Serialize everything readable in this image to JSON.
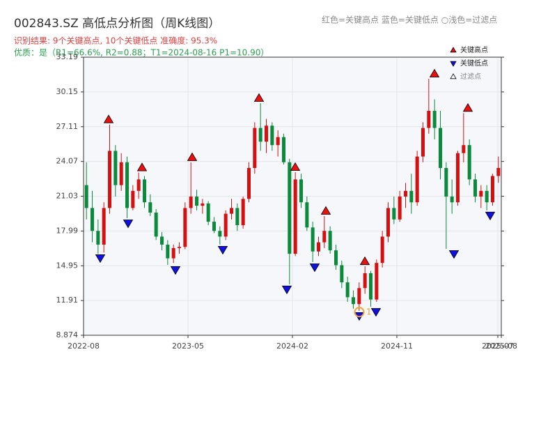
{
  "chart_data": {
    "type": "candlestick",
    "title": "002843.SZ 高低点分析图（周K线图）",
    "subtitles": [
      {
        "text": "识别结果: 9个关键高点, 10个关键低点  准确度: 95.3%",
        "color": "#e04040"
      },
      {
        "text": "优质：是（R1=66.6%, R2=0.88；T1=2024-08-16 P1=10.90）",
        "color": "#2aa050"
      }
    ],
    "header_note": "红色=关键高点    蓝色=关键低点    ○浅色=过滤点",
    "up_color": "#d41010",
    "down_color": "#0a8a3a",
    "grid": true,
    "xlim": [
      0,
      36
    ],
    "xticks": [
      {
        "value": 0,
        "label": "2022-08"
      },
      {
        "value": 9,
        "label": "2023-05"
      },
      {
        "value": 18,
        "label": "2024-02"
      },
      {
        "value": 27,
        "label": "2024-11"
      },
      {
        "value": 35.7,
        "label": "2025-07"
      },
      {
        "value": 36,
        "label": "2025-08"
      }
    ],
    "ylim": [
      8.874,
      33.19
    ],
    "yticks": [
      8.874,
      11.91,
      14.95,
      17.99,
      21.03,
      24.07,
      27.11,
      30.15,
      33.19
    ],
    "candles": [
      [
        22,
        24,
        19,
        20
      ],
      [
        20,
        21.5,
        17,
        18
      ],
      [
        18,
        19,
        16,
        16.8
      ],
      [
        16.8,
        20.5,
        16.1,
        20
      ],
      [
        20,
        27.3,
        19.5,
        25
      ],
      [
        25,
        25.5,
        21,
        22
      ],
      [
        22,
        24.8,
        21.5,
        24
      ],
      [
        24,
        24.5,
        19.11,
        20
      ],
      [
        20,
        22,
        19.8,
        21.5
      ],
      [
        21.5,
        23.1,
        20.8,
        22.5
      ],
      [
        22.5,
        22.8,
        20,
        20.5
      ],
      [
        20.5,
        21.2,
        19.3,
        19.6
      ],
      [
        19.6,
        19.9,
        17.2,
        17.5
      ],
      [
        17.5,
        17.9,
        16.3,
        16.8
      ],
      [
        16.8,
        17.2,
        15.03,
        15.6
      ],
      [
        15.6,
        16.8,
        15.2,
        16.5
      ],
      [
        16.5,
        17,
        16,
        16.6
      ],
      [
        16.6,
        20.5,
        16.4,
        20
      ],
      [
        20,
        23.99,
        19.5,
        21
      ],
      [
        21,
        21.6,
        19.8,
        20.2
      ],
      [
        20.2,
        20.8,
        19.5,
        20.4
      ],
      [
        20.4,
        20.6,
        18.5,
        18.8
      ],
      [
        18.8,
        19.2,
        17.8,
        18
      ],
      [
        18,
        18.4,
        16.8,
        17.5
      ],
      [
        17.5,
        19.8,
        17.2,
        19.5
      ],
      [
        19.5,
        20.8,
        19,
        20
      ],
      [
        20,
        20.4,
        18,
        18.5
      ],
      [
        18.5,
        21,
        18.2,
        20.8
      ],
      [
        20.8,
        24,
        20.5,
        23.5
      ],
      [
        23.5,
        27.5,
        23,
        27
      ],
      [
        27,
        29.17,
        25,
        25.8
      ],
      [
        25.8,
        27.8,
        24.8,
        27.2
      ],
      [
        27.2,
        27.5,
        25,
        25.5
      ],
      [
        25.5,
        26.8,
        24.5,
        26.2
      ],
      [
        26.2,
        26.5,
        23.8,
        24
      ],
      [
        24,
        24.3,
        13.33,
        16
      ],
      [
        16,
        23.13,
        15.8,
        22.5
      ],
      [
        22.5,
        23,
        20,
        20.5
      ],
      [
        20.5,
        21,
        18,
        18.3
      ],
      [
        18.3,
        18.8,
        15.27,
        16.2
      ],
      [
        16.2,
        17.5,
        15.8,
        17
      ],
      [
        17,
        19.3,
        16.5,
        18
      ],
      [
        18,
        18.4,
        16,
        16.3
      ],
      [
        16.3,
        16.8,
        14.6,
        15
      ],
      [
        15,
        15.4,
        13,
        13.5
      ],
      [
        13.5,
        14,
        11.8,
        12.2
      ],
      [
        12.2,
        12.8,
        11.2,
        11.6
      ],
      [
        11.6,
        13.5,
        11.01,
        13
      ],
      [
        13,
        14.9,
        12.5,
        14.3
      ],
      [
        14.3,
        14.5,
        11.37,
        12
      ],
      [
        12,
        15.5,
        11.8,
        15.2
      ],
      [
        15.2,
        18,
        14.8,
        17.5
      ],
      [
        17.5,
        20.5,
        17,
        20
      ],
      [
        20,
        21,
        18.6,
        19
      ],
      [
        19,
        21.5,
        18.8,
        21
      ],
      [
        21,
        22.2,
        20,
        21.5
      ],
      [
        21.5,
        23,
        19.5,
        20.5
      ],
      [
        20.5,
        25,
        20.2,
        24.5
      ],
      [
        24.5,
        27.5,
        24,
        27
      ],
      [
        27,
        31.3,
        26.5,
        28.5
      ],
      [
        28.5,
        29.5,
        26,
        27
      ],
      [
        27,
        28.5,
        22.5,
        23.5
      ],
      [
        23.5,
        24,
        16.43,
        21
      ],
      [
        21,
        22.5,
        19.5,
        20.5
      ],
      [
        20.5,
        25,
        20.2,
        24.8
      ],
      [
        24.8,
        28.3,
        24,
        25.5
      ],
      [
        25.5,
        26,
        22,
        22.5
      ],
      [
        22.5,
        23,
        20.5,
        21
      ],
      [
        21,
        22,
        20,
        21.5
      ],
      [
        21.5,
        22,
        19.79,
        20.5
      ],
      [
        20.5,
        23,
        20.2,
        22.8
      ],
      [
        22.8,
        24.5,
        22.2,
        23.5
      ]
    ],
    "series": [
      {
        "name": "关键高点",
        "color": "#e81010",
        "marker": "triangle-up",
        "x": [
          2.16,
          5.04,
          9.36,
          15.12,
          18.24,
          20.88,
          24.24,
          30.24,
          33.12
        ],
        "values": [
          27.3,
          23.1,
          23.99,
          29.17,
          23.13,
          19.3,
          14.9,
          31.3,
          28.3
        ]
      },
      {
        "name": "关键低点",
        "color": "#1010e0",
        "marker": "triangle-down",
        "x": [
          1.44,
          3.84,
          7.92,
          12,
          17.52,
          19.92,
          23.76,
          25.2,
          31.92,
          35.04
        ],
        "values": [
          16.07,
          19.11,
          15.03,
          16.8,
          13.33,
          15.27,
          11.01,
          11.37,
          16.43,
          19.79
        ]
      },
      {
        "name": "过滤点",
        "color": "#f0a030",
        "marker": "circle",
        "x": [
          23.76
        ],
        "values": [
          10.9
        ],
        "labels": [
          "1"
        ]
      }
    ],
    "legend": "upper right"
  }
}
